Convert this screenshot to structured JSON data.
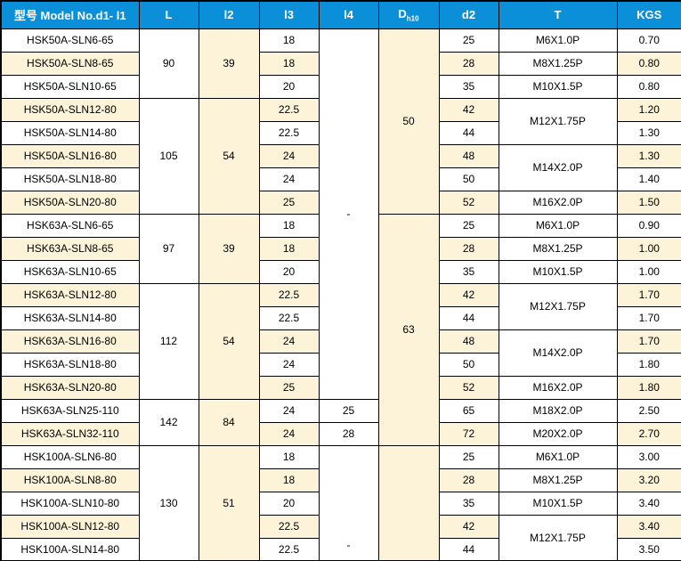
{
  "colors": {
    "header_bg": "#0A8FD8",
    "row_cream": "#FCF3D8",
    "row_white": "#ffffff",
    "grid": "#000000"
  },
  "table": {
    "headers": [
      {
        "label": "型号 Model No.d1- l1"
      },
      {
        "label": "L"
      },
      {
        "label": "l2"
      },
      {
        "label": "l3"
      },
      {
        "label": "l4"
      },
      {
        "label": "D",
        "sub": "h10"
      },
      {
        "label": "d2"
      },
      {
        "label": "T"
      },
      {
        "label": "KGS"
      }
    ],
    "rows": [
      {
        "cells": [
          {
            "col": "model",
            "t": "HSK50A-SLN6-65",
            "bg": "w"
          },
          {
            "col": "l",
            "t": "90",
            "rs": 3,
            "bg": "w"
          },
          {
            "col": "l2",
            "t": "39",
            "rs": 3,
            "bg": "c"
          },
          {
            "col": "l3",
            "t": "18",
            "bg": "w"
          },
          {
            "col": "l4",
            "t": "-",
            "rs": 16,
            "bg": "w"
          },
          {
            "col": "d",
            "t": "50",
            "rs": 8,
            "bg": "c"
          },
          {
            "col": "d2",
            "t": "25",
            "bg": "w"
          },
          {
            "col": "t",
            "t": "M6X1.0P",
            "bg": "w"
          },
          {
            "col": "kgs",
            "t": "0.70",
            "bg": "w"
          }
        ]
      },
      {
        "cells": [
          {
            "col": "model",
            "t": "HSK50A-SLN8-65",
            "bg": "c"
          },
          {
            "col": "l3",
            "t": "18",
            "bg": "c"
          },
          {
            "col": "d2",
            "t": "28",
            "bg": "c"
          },
          {
            "col": "t",
            "t": "M8X1.25P",
            "bg": "w"
          },
          {
            "col": "kgs",
            "t": "0.80",
            "bg": "c"
          }
        ]
      },
      {
        "cells": [
          {
            "col": "model",
            "t": "HSK50A-SLN10-65",
            "bg": "w"
          },
          {
            "col": "l3",
            "t": "20",
            "bg": "w"
          },
          {
            "col": "d2",
            "t": "35",
            "bg": "w"
          },
          {
            "col": "t",
            "t": "M10X1.5P",
            "bg": "w"
          },
          {
            "col": "kgs",
            "t": "0.80",
            "bg": "w"
          }
        ]
      },
      {
        "cells": [
          {
            "col": "model",
            "t": "HSK50A-SLN12-80",
            "bg": "c"
          },
          {
            "col": "l",
            "t": "105",
            "rs": 5,
            "bg": "w"
          },
          {
            "col": "l2",
            "t": "54",
            "rs": 5,
            "bg": "c"
          },
          {
            "col": "l3",
            "t": "22.5",
            "bg": "c"
          },
          {
            "col": "d2",
            "t": "42",
            "bg": "c"
          },
          {
            "col": "t",
            "t": "M12X1.75P",
            "rs": 2,
            "bg": "w"
          },
          {
            "col": "kgs",
            "t": "1.20",
            "bg": "c"
          }
        ]
      },
      {
        "cells": [
          {
            "col": "model",
            "t": "HSK50A-SLN14-80",
            "bg": "w"
          },
          {
            "col": "l3",
            "t": "22.5",
            "bg": "w"
          },
          {
            "col": "d2",
            "t": "44",
            "bg": "w"
          },
          {
            "col": "kgs",
            "t": "1.30",
            "bg": "w"
          }
        ]
      },
      {
        "cells": [
          {
            "col": "model",
            "t": "HSK50A-SLN16-80",
            "bg": "c"
          },
          {
            "col": "l3",
            "t": "24",
            "bg": "c"
          },
          {
            "col": "d2",
            "t": "48",
            "bg": "c"
          },
          {
            "col": "t",
            "t": "M14X2.0P",
            "rs": 2,
            "bg": "w"
          },
          {
            "col": "kgs",
            "t": "1.30",
            "bg": "c"
          }
        ]
      },
      {
        "cells": [
          {
            "col": "model",
            "t": "HSK50A-SLN18-80",
            "bg": "w"
          },
          {
            "col": "l3",
            "t": "24",
            "bg": "w"
          },
          {
            "col": "d2",
            "t": "50",
            "bg": "w"
          },
          {
            "col": "kgs",
            "t": "1.40",
            "bg": "w"
          }
        ]
      },
      {
        "cells": [
          {
            "col": "model",
            "t": "HSK50A-SLN20-80",
            "bg": "c"
          },
          {
            "col": "l3",
            "t": "25",
            "bg": "c"
          },
          {
            "col": "d2",
            "t": "52",
            "bg": "c"
          },
          {
            "col": "t",
            "t": "M16X2.0P",
            "bg": "w"
          },
          {
            "col": "kgs",
            "t": "1.50",
            "bg": "c"
          }
        ]
      },
      {
        "cells": [
          {
            "col": "model",
            "t": "HSK63A-SLN6-65",
            "bg": "w"
          },
          {
            "col": "l",
            "t": "97",
            "rs": 3,
            "bg": "w"
          },
          {
            "col": "l2",
            "t": "39",
            "rs": 3,
            "bg": "c"
          },
          {
            "col": "l3",
            "t": "18",
            "bg": "w"
          },
          {
            "col": "d",
            "t": "63",
            "rs": 10,
            "bg": "c"
          },
          {
            "col": "d2",
            "t": "25",
            "bg": "w"
          },
          {
            "col": "t",
            "t": "M6X1.0P",
            "bg": "w"
          },
          {
            "col": "kgs",
            "t": "0.90",
            "bg": "w"
          }
        ]
      },
      {
        "cells": [
          {
            "col": "model",
            "t": "HSK63A-SLN8-65",
            "bg": "c"
          },
          {
            "col": "l3",
            "t": "18",
            "bg": "c"
          },
          {
            "col": "d2",
            "t": "28",
            "bg": "c"
          },
          {
            "col": "t",
            "t": "M8X1.25P",
            "bg": "w"
          },
          {
            "col": "kgs",
            "t": "1.00",
            "bg": "c"
          }
        ]
      },
      {
        "cells": [
          {
            "col": "model",
            "t": "HSK63A-SLN10-65",
            "bg": "w"
          },
          {
            "col": "l3",
            "t": "20",
            "bg": "w"
          },
          {
            "col": "d2",
            "t": "35",
            "bg": "w"
          },
          {
            "col": "t",
            "t": "M10X1.5P",
            "bg": "w"
          },
          {
            "col": "kgs",
            "t": "1.00",
            "bg": "w"
          }
        ]
      },
      {
        "cells": [
          {
            "col": "model",
            "t": "HSK63A-SLN12-80",
            "bg": "c"
          },
          {
            "col": "l",
            "t": "112",
            "rs": 5,
            "bg": "w"
          },
          {
            "col": "l2",
            "t": "54",
            "rs": 5,
            "bg": "c"
          },
          {
            "col": "l3",
            "t": "22.5",
            "bg": "c"
          },
          {
            "col": "d2",
            "t": "42",
            "bg": "c"
          },
          {
            "col": "t",
            "t": "M12X1.75P",
            "rs": 2,
            "bg": "w"
          },
          {
            "col": "kgs",
            "t": "1.70",
            "bg": "c"
          }
        ]
      },
      {
        "cells": [
          {
            "col": "model",
            "t": "HSK63A-SLN14-80",
            "bg": "w"
          },
          {
            "col": "l3",
            "t": "22.5",
            "bg": "w"
          },
          {
            "col": "d2",
            "t": "44",
            "bg": "w"
          },
          {
            "col": "kgs",
            "t": "1.70",
            "bg": "w"
          }
        ]
      },
      {
        "cells": [
          {
            "col": "model",
            "t": "HSK63A-SLN16-80",
            "bg": "c"
          },
          {
            "col": "l3",
            "t": "24",
            "bg": "c"
          },
          {
            "col": "d2",
            "t": "48",
            "bg": "c"
          },
          {
            "col": "t",
            "t": "M14X2.0P",
            "rs": 2,
            "bg": "w"
          },
          {
            "col": "kgs",
            "t": "1.70",
            "bg": "c"
          }
        ]
      },
      {
        "cells": [
          {
            "col": "model",
            "t": "HSK63A-SLN18-80",
            "bg": "w"
          },
          {
            "col": "l3",
            "t": "24",
            "bg": "w"
          },
          {
            "col": "d2",
            "t": "50",
            "bg": "w"
          },
          {
            "col": "kgs",
            "t": "1.80",
            "bg": "w"
          }
        ]
      },
      {
        "cells": [
          {
            "col": "model",
            "t": "HSK63A-SLN20-80",
            "bg": "c"
          },
          {
            "col": "l3",
            "t": "25",
            "bg": "c"
          },
          {
            "col": "d2",
            "t": "52",
            "bg": "c"
          },
          {
            "col": "t",
            "t": "M16X2.0P",
            "bg": "w"
          },
          {
            "col": "kgs",
            "t": "1.80",
            "bg": "c"
          }
        ]
      },
      {
        "cells": [
          {
            "col": "model",
            "t": "HSK63A-SLN25-110",
            "bg": "w"
          },
          {
            "col": "l",
            "t": "142",
            "rs": 2,
            "bg": "w"
          },
          {
            "col": "l2",
            "t": "84",
            "rs": 2,
            "bg": "c"
          },
          {
            "col": "l3",
            "t": "24",
            "bg": "w"
          },
          {
            "col": "l4",
            "t": "25",
            "bg": "w"
          },
          {
            "col": "d2",
            "t": "65",
            "bg": "w"
          },
          {
            "col": "t",
            "t": "M18X2.0P",
            "bg": "w"
          },
          {
            "col": "kgs",
            "t": "2.50",
            "bg": "w"
          }
        ]
      },
      {
        "cells": [
          {
            "col": "model",
            "t": "HSK63A-SLN32-110",
            "bg": "c"
          },
          {
            "col": "l3",
            "t": "24",
            "bg": "c"
          },
          {
            "col": "l4",
            "t": "28",
            "bg": "w"
          },
          {
            "col": "d2",
            "t": "72",
            "bg": "c"
          },
          {
            "col": "t",
            "t": "M20X2.0P",
            "bg": "w"
          },
          {
            "col": "kgs",
            "t": "2.70",
            "bg": "c"
          }
        ]
      },
      {
        "cells": [
          {
            "col": "model",
            "t": "HSK100A-SLN6-80",
            "bg": "w"
          },
          {
            "col": "l",
            "t": "130",
            "rs": 5,
            "bg": "w"
          },
          {
            "col": "l2",
            "t": "51",
            "rs": 5,
            "bg": "c"
          },
          {
            "col": "l3",
            "t": "18",
            "bg": "w"
          },
          {
            "col": "l4",
            "t": "-",
            "rs": 5,
            "bg": "w",
            "va": "b"
          },
          {
            "col": "d",
            "t": "",
            "rs": 5,
            "bg": "c"
          },
          {
            "col": "d2",
            "t": "25",
            "bg": "w"
          },
          {
            "col": "t",
            "t": "M6X1.0P",
            "bg": "w"
          },
          {
            "col": "kgs",
            "t": "3.00",
            "bg": "w"
          }
        ]
      },
      {
        "cells": [
          {
            "col": "model",
            "t": "HSK100A-SLN8-80",
            "bg": "c"
          },
          {
            "col": "l3",
            "t": "18",
            "bg": "c"
          },
          {
            "col": "d2",
            "t": "28",
            "bg": "c"
          },
          {
            "col": "t",
            "t": "M8X1.25P",
            "bg": "w"
          },
          {
            "col": "kgs",
            "t": "3.20",
            "bg": "c"
          }
        ]
      },
      {
        "cells": [
          {
            "col": "model",
            "t": "HSK100A-SLN10-80",
            "bg": "w"
          },
          {
            "col": "l3",
            "t": "20",
            "bg": "w"
          },
          {
            "col": "d2",
            "t": "35",
            "bg": "w"
          },
          {
            "col": "t",
            "t": "M10X1.5P",
            "bg": "w"
          },
          {
            "col": "kgs",
            "t": "3.40",
            "bg": "w"
          }
        ]
      },
      {
        "cells": [
          {
            "col": "model",
            "t": "HSK100A-SLN12-80",
            "bg": "c"
          },
          {
            "col": "l3",
            "t": "22.5",
            "bg": "c"
          },
          {
            "col": "d2",
            "t": "42",
            "bg": "c"
          },
          {
            "col": "t",
            "t": "M12X1.75P",
            "rs": 2,
            "bg": "w"
          },
          {
            "col": "kgs",
            "t": "3.40",
            "bg": "c"
          }
        ]
      },
      {
        "cells": [
          {
            "col": "model",
            "t": "HSK100A-SLN14-80",
            "bg": "w"
          },
          {
            "col": "l3",
            "t": "22.5",
            "bg": "w"
          },
          {
            "col": "d2",
            "t": "44",
            "bg": "w"
          },
          {
            "col": "kgs",
            "t": "3.50",
            "bg": "w"
          }
        ]
      }
    ]
  }
}
